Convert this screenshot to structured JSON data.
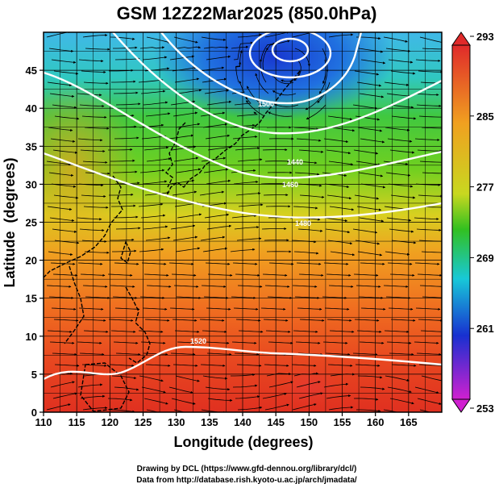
{
  "title": "GSM 12Z22Mar2025 (850.0hPa)",
  "chart_data": {
    "type": "heatmap",
    "title": "GSM 12Z22Mar2025 (850.0hPa)",
    "xlabel": "Longitude (degrees)",
    "ylabel": "Latitude  (degrees)",
    "xlim": [
      110,
      170
    ],
    "ylim": [
      0,
      50
    ],
    "x_ticks": [
      "110",
      "115",
      "120",
      "125",
      "130",
      "135",
      "140",
      "145",
      "150",
      "155",
      "160",
      "165"
    ],
    "y_ticks": [
      "0",
      "5",
      "10",
      "15",
      "20",
      "25",
      "30",
      "35",
      "40",
      "45"
    ],
    "colorbar": {
      "ticks": [
        "293",
        "285",
        "277",
        "269",
        "261",
        "253"
      ],
      "range": [
        253,
        293
      ],
      "colors": [
        "#e02a2a",
        "#f0a020",
        "#32c020",
        "#18c8d8",
        "#1830d0",
        "#d020d0"
      ]
    },
    "contour_labels": [
      "1500",
      "1440",
      "1460",
      "1480",
      "1520"
    ],
    "grid": true,
    "streamlines": true,
    "coastlines": true
  },
  "credits": {
    "line1": "Drawing by DCL (https://www.gfd-dennou.org/library/dcl/)",
    "line2": "Data from http://database.rish.kyoto-u.ac.jp/arch/jmadata/"
  }
}
